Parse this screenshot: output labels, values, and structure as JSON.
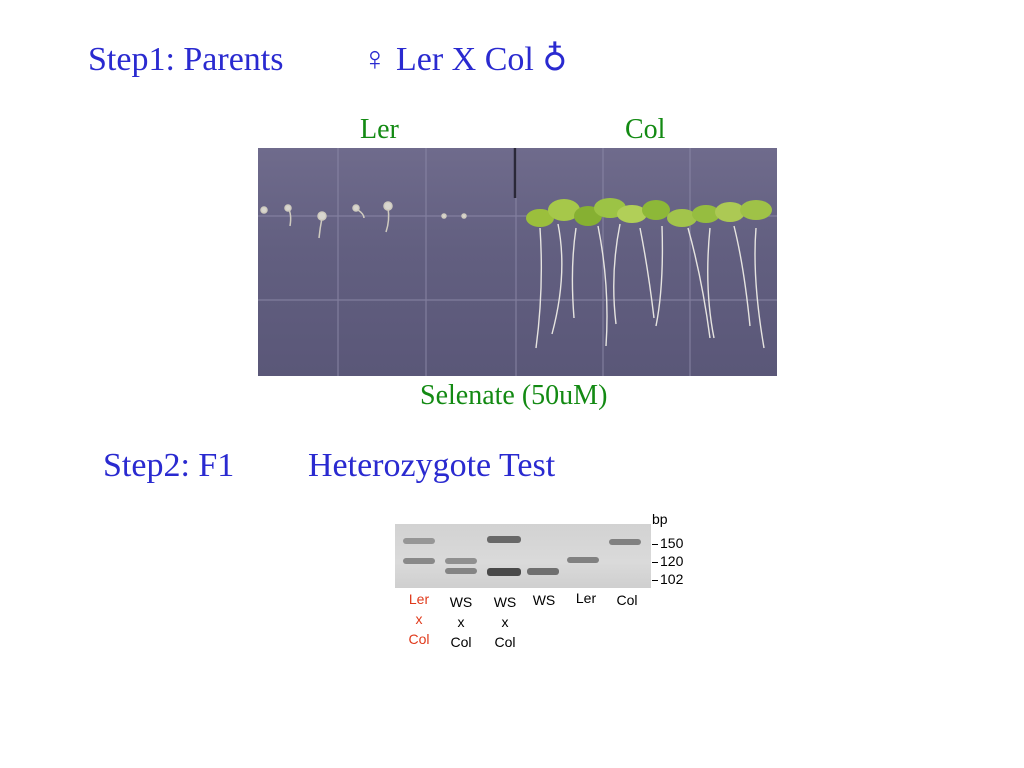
{
  "step1": {
    "label": "Step1: Parents",
    "cross": "♀ Ler X Col ♁"
  },
  "photo_labels": {
    "left": "Ler",
    "right": "Col",
    "caption": "Selenate (50uM)"
  },
  "step2": {
    "label": "Step2: F1",
    "subtitle": "Heterozygote Test"
  },
  "gel": {
    "unit": "bp",
    "markers": [
      "150",
      "120",
      "102"
    ],
    "lanes": [
      {
        "lines": [
          "Ler",
          "x",
          "Col"
        ],
        "color": "#e0391a"
      },
      {
        "lines": [
          "WS",
          "x",
          "Col"
        ],
        "color": "#000000"
      },
      {
        "lines": [
          "WS",
          "x",
          "Col"
        ],
        "color": "#000000"
      },
      {
        "lines": [
          "WS"
        ],
        "color": "#000000"
      },
      {
        "lines": [
          "Ler"
        ],
        "color": "#000000"
      },
      {
        "lines": [
          "Col"
        ],
        "color": "#000000"
      }
    ]
  }
}
